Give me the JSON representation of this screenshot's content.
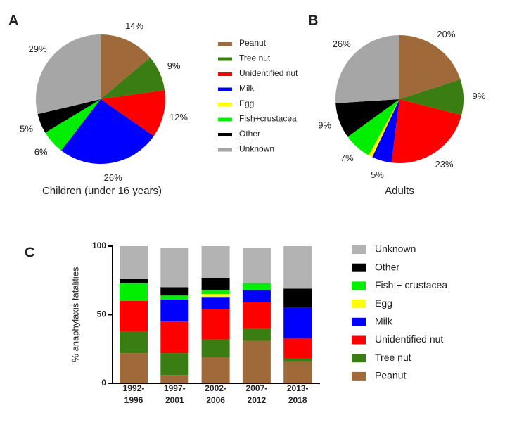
{
  "chart_data": [
    {
      "type": "pie",
      "panel": "A",
      "subtitle": "Children (under 16 years)",
      "categories": [
        "Peanut",
        "Tree nut",
        "Unidentified nut",
        "Milk",
        "Egg",
        "Fish+crustacea",
        "Other",
        "Unknown"
      ],
      "values": [
        14,
        9,
        12,
        26,
        0,
        6,
        5,
        29
      ],
      "value_labels": [
        "14%",
        "9%",
        "12%",
        "26%",
        null,
        "6%",
        "5%",
        "29%"
      ],
      "colors": [
        "#a0693a",
        "#3a7d13",
        "#ff0000",
        "#0000ff",
        "#ffff00",
        "#00ee00",
        "#000000",
        "#a6a6a6"
      ]
    },
    {
      "type": "pie",
      "panel": "B",
      "subtitle": "Adults",
      "values": [
        20,
        9,
        23,
        5,
        1,
        7,
        9,
        26
      ],
      "value_labels": [
        "20%",
        "9%",
        "23%",
        "5%",
        null,
        "7%",
        "9%",
        "26%"
      ],
      "colors": [
        "#a0693a",
        "#3a7d13",
        "#ff0000",
        "#0000ff",
        "#ffff00",
        "#00ee00",
        "#000000",
        "#a6a6a6"
      ]
    },
    {
      "type": "stacked_bar",
      "panel": "C",
      "ylabel": "% anaphylaxis fatalities",
      "categories": [
        "1992-\n1996",
        "1997-\n2001",
        "2002-\n2006",
        "2007-\n2012",
        "2013-\n2018"
      ],
      "ylim": [
        0,
        100
      ],
      "yticks": [
        0,
        50,
        100
      ],
      "series": [
        {
          "name": "Peanut",
          "color": "#a0693a",
          "values": [
            22,
            6,
            19,
            31,
            16
          ]
        },
        {
          "name": "Tree nut",
          "color": "#3a7d13",
          "values": [
            16,
            16,
            13,
            9,
            2
          ]
        },
        {
          "name": "Unidentified nut",
          "color": "#ff0000",
          "values": [
            22,
            23,
            22,
            19,
            15
          ]
        },
        {
          "name": "Milk",
          "color": "#0000ff",
          "values": [
            0,
            16,
            9,
            9,
            22
          ]
        },
        {
          "name": "Egg",
          "color": "#ffff00",
          "values": [
            0,
            0,
            2,
            0,
            0
          ]
        },
        {
          "name": "Fish + crustacea",
          "color": "#00ee00",
          "values": [
            13,
            3,
            3,
            5,
            0
          ]
        },
        {
          "name": "Other",
          "color": "#000000",
          "values": [
            3,
            6,
            9,
            0,
            14
          ]
        },
        {
          "name": "Unknown",
          "color": "#b3b3b3",
          "values": [
            24,
            29,
            23,
            26,
            31
          ]
        }
      ]
    }
  ]
}
